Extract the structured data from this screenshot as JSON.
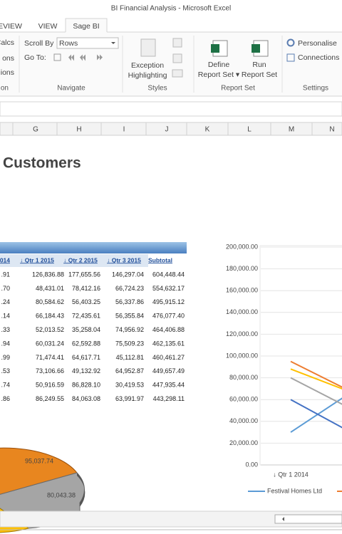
{
  "window": {
    "title": "BI Financial Analysis - Microsoft Excel"
  },
  "tabs": [
    "EVIEW",
    "VIEW",
    "Sage BI"
  ],
  "ribbon": {
    "left_items": [
      "Calcs",
      "ons",
      "ions"
    ],
    "left_group": "on",
    "navigate": {
      "scroll_by": "Scroll By",
      "scroll_value": "Rows",
      "go_to": "Go To:",
      "label": "Navigate"
    },
    "styles": {
      "button": [
        "Exception",
        "Highlighting"
      ],
      "label": "Styles"
    },
    "report_set": {
      "define": [
        "Define",
        "Report Set ▾"
      ],
      "run": [
        "Run",
        "Report Set"
      ],
      "label": "Report Set"
    },
    "settings": {
      "items": [
        "Personalise",
        "Connections"
      ],
      "label": "Settings"
    }
  },
  "columns": [
    "G",
    "H",
    "I",
    "J",
    "K",
    "L",
    "M",
    "N"
  ],
  "sheet": {
    "title": "Customers",
    "table": {
      "header": [
        "014",
        "↓ Qtr 1 2015",
        "↓ Qtr 2 2015",
        "↓ Qtr 3 2015",
        "Subtotal"
      ],
      "rows": [
        [
          ".91",
          "126,836.88",
          "177,655.56",
          "146,297.04",
          "604,448.44"
        ],
        [
          ".70",
          "48,431.01",
          "78,412.16",
          "66,724.23",
          "554,632.17"
        ],
        [
          ".24",
          "80,584.62",
          "56,403.25",
          "56,337.86",
          "495,915.12"
        ],
        [
          ".14",
          "66,184.43",
          "72,435.61",
          "56,355.84",
          "476,077.40"
        ],
        [
          ".33",
          "52,013.52",
          "35,258.04",
          "74,956.92",
          "464,406.88"
        ],
        [
          ".94",
          "60,031.24",
          "62,592.88",
          "75,509.23",
          "462,135.61"
        ],
        [
          ".99",
          "71,474.41",
          "64,617.71",
          "45,112.81",
          "460,461.27"
        ],
        [
          ".53",
          "73,106.66",
          "49,132.92",
          "64,952.87",
          "449,657.49"
        ],
        [
          ".74",
          "50,916.59",
          "86,828.10",
          "30,419.53",
          "447,935.44"
        ],
        [
          ".86",
          "86,249.55",
          "84,063.08",
          "63,991.97",
          "443,298.11"
        ]
      ]
    }
  },
  "pie_labels": [
    "95,037.74",
    "80,043.38"
  ],
  "chart_data": {
    "type": "line",
    "categories": [
      "↓ Qtr 1 2014",
      "↓"
    ],
    "ylim": [
      0,
      200000
    ],
    "yticks": [
      {
        "value": 0,
        "label": "0.00"
      },
      {
        "value": 20000,
        "label": "20,000.00"
      },
      {
        "value": 40000,
        "label": "40,000.00"
      },
      {
        "value": 60000,
        "label": "60,000.00"
      },
      {
        "value": 80000,
        "label": "80,000.00"
      },
      {
        "value": 100000,
        "label": "100,000.00"
      },
      {
        "value": 120000,
        "label": "120,000.00"
      },
      {
        "value": 140000,
        "label": "140,000.00"
      },
      {
        "value": 160000,
        "label": "160,000.00"
      },
      {
        "value": 180000,
        "label": "180,000.00"
      },
      {
        "value": 200000,
        "label": "200,000.00"
      }
    ],
    "grid": true,
    "series": [
      {
        "name": "Festival Homes Ltd",
        "color": "#5b9bd5",
        "values": [
          30000,
          75000
        ]
      },
      {
        "color": "#ed7d31",
        "values": [
          95000,
          61000
        ]
      },
      {
        "color": "#ffc000",
        "values": [
          88000,
          62000
        ]
      },
      {
        "color": "#a5a5a5",
        "values": [
          80000,
          45000
        ]
      },
      {
        "color": "#4472c4",
        "values": [
          60000,
          23000
        ]
      }
    ]
  }
}
